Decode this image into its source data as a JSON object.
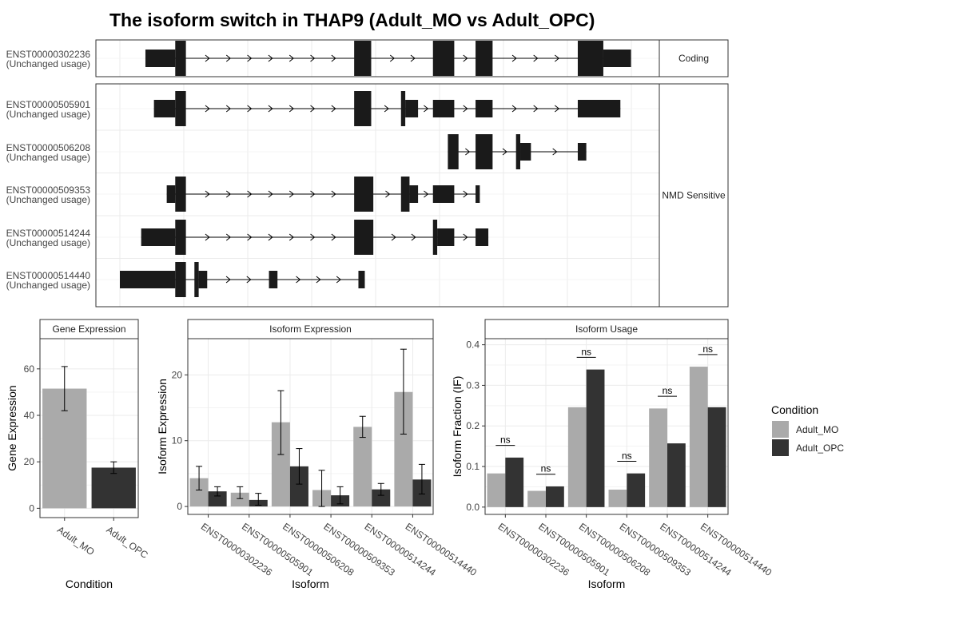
{
  "title": "The isoform switch in THAP9 (Adult_MO vs Adult_OPC)",
  "colors": {
    "adult_mo": "#aaaaaa",
    "adult_opc": "#333333",
    "exon": "#1a1a1a",
    "grid": "#ebebeb",
    "strip": "#ffffff"
  },
  "structure": {
    "panels": [
      {
        "label": "Coding",
        "isoforms": [
          {
            "id": "ENST00000302236",
            "status": "(Unchanged usage)",
            "exons": [
              [
                0.06,
                0.13,
                "utr"
              ],
              [
                0.13,
                0.155,
                "cds"
              ],
              [
                0.55,
                0.59,
                "cds"
              ],
              [
                0.735,
                0.785,
                "cds"
              ],
              [
                0.835,
                0.875,
                "cds"
              ],
              [
                1.075,
                1.135,
                "cds"
              ],
              [
                1.135,
                1.2,
                "utr"
              ]
            ]
          }
        ]
      },
      {
        "label": "NMD Sensitive",
        "isoforms": [
          {
            "id": "ENST00000505901",
            "status": "(Unchanged usage)",
            "exons": [
              [
                0.08,
                0.13,
                "utr"
              ],
              [
                0.13,
                0.155,
                "cds"
              ],
              [
                0.55,
                0.59,
                "cds"
              ],
              [
                0.66,
                0.67,
                "cds"
              ],
              [
                0.67,
                0.7,
                "utr"
              ],
              [
                0.735,
                0.785,
                "utr"
              ],
              [
                0.835,
                0.875,
                "utr"
              ],
              [
                1.075,
                1.175,
                "utr"
              ]
            ]
          },
          {
            "id": "ENST00000506208",
            "status": "(Unchanged usage)",
            "exons": [
              [
                0.77,
                0.795,
                "cds"
              ],
              [
                0.835,
                0.875,
                "cds"
              ],
              [
                0.93,
                0.94,
                "cds"
              ],
              [
                0.94,
                0.965,
                "utr"
              ],
              [
                1.075,
                1.095,
                "utr"
              ]
            ]
          },
          {
            "id": "ENST00000509353",
            "status": "(Unchanged usage)",
            "exons": [
              [
                0.11,
                0.13,
                "utr"
              ],
              [
                0.13,
                0.155,
                "cds"
              ],
              [
                0.55,
                0.595,
                "cds"
              ],
              [
                0.66,
                0.68,
                "cds"
              ],
              [
                0.68,
                0.7,
                "utr"
              ],
              [
                0.735,
                0.785,
                "utr"
              ],
              [
                0.835,
                0.845,
                "utr"
              ]
            ]
          },
          {
            "id": "ENST00000514244",
            "status": "(Unchanged usage)",
            "exons": [
              [
                0.05,
                0.13,
                "utr"
              ],
              [
                0.13,
                0.155,
                "cds"
              ],
              [
                0.55,
                0.595,
                "cds"
              ],
              [
                0.735,
                0.745,
                "cds"
              ],
              [
                0.745,
                0.785,
                "utr"
              ],
              [
                0.835,
                0.865,
                "utr"
              ]
            ]
          },
          {
            "id": "ENST00000514440",
            "status": "(Unchanged usage)",
            "exons": [
              [
                0.0,
                0.13,
                "utr"
              ],
              [
                0.13,
                0.155,
                "cds"
              ],
              [
                0.175,
                0.185,
                "cds"
              ],
              [
                0.185,
                0.205,
                "utr"
              ],
              [
                0.35,
                0.37,
                "utr"
              ],
              [
                0.56,
                0.575,
                "utr"
              ]
            ]
          }
        ]
      }
    ]
  },
  "chart_data": [
    {
      "type": "bar",
      "title": "Gene Expression",
      "xlabel": "Condition",
      "ylabel": "Gene Expression",
      "categories": [
        "Adult_MO",
        "Adult_OPC"
      ],
      "values": [
        51.5,
        17.5
      ],
      "errors": [
        [
          42,
          61
        ],
        [
          15,
          20
        ]
      ],
      "ylim": [
        -4,
        73
      ],
      "yticks": [
        0,
        20,
        40,
        60
      ],
      "grid": true
    },
    {
      "type": "bar",
      "title": "Isoform Expression",
      "xlabel": "Isoform",
      "ylabel": "Isoform Expression",
      "categories": [
        "ENST00000302236",
        "ENST00000505901",
        "ENST00000506208",
        "ENST00000509353",
        "ENST00000514244",
        "ENST00000514440"
      ],
      "series": [
        {
          "name": "Adult_MO",
          "values": [
            4.3,
            2.1,
            12.8,
            2.5,
            12.1,
            17.4
          ],
          "errors": [
            [
              2.5,
              6.1
            ],
            [
              1.2,
              3.0
            ],
            [
              7.9,
              17.6
            ],
            [
              0.0,
              5.5
            ],
            [
              10.5,
              13.7
            ],
            [
              11.0,
              23.9
            ]
          ]
        },
        {
          "name": "Adult_OPC",
          "values": [
            2.3,
            1.0,
            6.1,
            1.7,
            2.6,
            4.1
          ],
          "errors": [
            [
              1.6,
              3.0
            ],
            [
              0.2,
              2.0
            ],
            [
              3.4,
              8.8
            ],
            [
              0.4,
              3.0
            ],
            [
              1.7,
              3.5
            ],
            [
              1.9,
              6.4
            ]
          ]
        }
      ],
      "ylim": [
        -1.2,
        25.5
      ],
      "yticks": [
        0,
        10,
        20
      ],
      "grid": true
    },
    {
      "type": "bar",
      "title": "Isoform Usage",
      "xlabel": "Isoform",
      "ylabel": "Isoform Fraction (IF)",
      "categories": [
        "ENST00000302236",
        "ENST00000505901",
        "ENST00000506208",
        "ENST00000509353",
        "ENST00000514244",
        "ENST00000514440"
      ],
      "series": [
        {
          "name": "Adult_MO",
          "values": [
            0.083,
            0.04,
            0.246,
            0.043,
            0.243,
            0.346
          ]
        },
        {
          "name": "Adult_OPC",
          "values": [
            0.122,
            0.051,
            0.339,
            0.083,
            0.157,
            0.246
          ]
        }
      ],
      "annotations": [
        "ns",
        "ns",
        "ns",
        "ns",
        "ns",
        "ns"
      ],
      "ylim": [
        -0.018,
        0.415
      ],
      "yticks": [
        0.0,
        0.1,
        0.2,
        0.3,
        0.4
      ],
      "grid": true
    }
  ],
  "legend": {
    "title": "Condition",
    "placement": "right",
    "items": [
      {
        "name": "Adult_MO",
        "color": "#aaaaaa"
      },
      {
        "name": "Adult_OPC",
        "color": "#333333"
      }
    ]
  }
}
